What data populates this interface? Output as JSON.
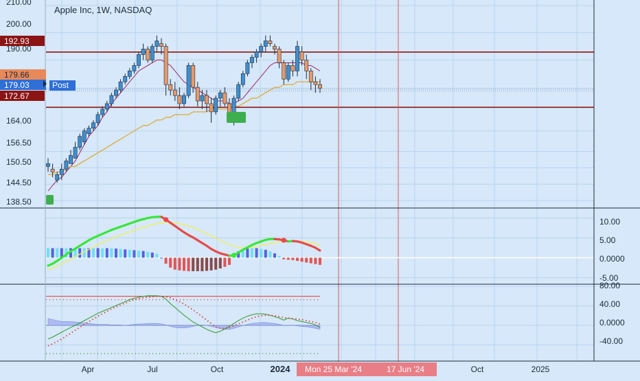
{
  "symbol_title": "Apple Inc, 1W, NASDAQ",
  "post_label": "Post",
  "colors": {
    "background": "#d6e8f9",
    "grid": "#b9d3ee",
    "up_candle": "#3f8fd0",
    "down_candle": "#e69a6c",
    "level_line": "#8b1414",
    "ma_fast": "#a0337a",
    "ma_slow": "#e0a020",
    "vline_red": "#e05a5a",
    "macd_up": "#39e639",
    "macd_down": "#e64a4a",
    "signal": "#f0f060",
    "hist_pos_strong": "#5561e0",
    "hist_pos_light": "#6ee0f5",
    "hist_neg_strong": "#e25555",
    "hist_neg_dark": "#8a4a4a",
    "osc_green": "#2f9a2f",
    "osc_red_dotted": "#e03a3a",
    "osc_area": "#9aa8f0"
  },
  "chart_data": [
    {
      "type": "candlestick",
      "title": "Apple Inc, 1W, NASDAQ",
      "x_labels": [
        "Apr",
        "Jul",
        "Oct",
        "2024",
        "Mon 25 Mar '24",
        "17 Jun '24",
        "Oct",
        "2025"
      ],
      "y_ticks": [
        "210.00",
        "200.00",
        "192.93",
        "190.00",
        "179.66",
        "179.03",
        "172.67",
        "164.00",
        "156.50",
        "150.50",
        "144.50",
        "138.50"
      ],
      "ylim": [
        136,
        212
      ],
      "horizontal_levels": [
        192.93,
        172.67
      ],
      "price_labels": {
        "last": "179.66",
        "post": "179.03"
      },
      "candles": [
        [
          151,
          154,
          149,
          152
        ],
        [
          150,
          152,
          147,
          149
        ],
        [
          146,
          149,
          145,
          148
        ],
        [
          148,
          152,
          146,
          150
        ],
        [
          150,
          154,
          149,
          153
        ],
        [
          152,
          157,
          152,
          155
        ],
        [
          154,
          160,
          154,
          158
        ],
        [
          158,
          163,
          157,
          162
        ],
        [
          160,
          165,
          159,
          164
        ],
        [
          163,
          166,
          162,
          165
        ],
        [
          165,
          168,
          164,
          167
        ],
        [
          167,
          171,
          166,
          170
        ],
        [
          170,
          173,
          169,
          172
        ],
        [
          172,
          175,
          171,
          174
        ],
        [
          174,
          178,
          173,
          177
        ],
        [
          177,
          180,
          176,
          179
        ],
        [
          179,
          183,
          178,
          182
        ],
        [
          182,
          185,
          181,
          184
        ],
        [
          184,
          187,
          183,
          186
        ],
        [
          186,
          189,
          185,
          188
        ],
        [
          188,
          193,
          187,
          192
        ],
        [
          192,
          196,
          190,
          194
        ],
        [
          194,
          195,
          189,
          190
        ],
        [
          190,
          196,
          189,
          195
        ],
        [
          195,
          199,
          193,
          197
        ],
        [
          196,
          198,
          192,
          195
        ],
        [
          195,
          196,
          177,
          181
        ],
        [
          181,
          183,
          177,
          179
        ],
        [
          179,
          182,
          175,
          177
        ],
        [
          177,
          180,
          172,
          174
        ],
        [
          174,
          178,
          173,
          177
        ],
        [
          177,
          189,
          176,
          188
        ],
        [
          188,
          189,
          178,
          180
        ],
        [
          180,
          182,
          173,
          175
        ],
        [
          175,
          179,
          172,
          177
        ],
        [
          177,
          179,
          171,
          174
        ],
        [
          174,
          176,
          167,
          171
        ],
        [
          171,
          177,
          170,
          176
        ],
        [
          176,
          179,
          173,
          178
        ],
        [
          178,
          180,
          173,
          174
        ],
        [
          174,
          176,
          168,
          170
        ],
        [
          170,
          177,
          166,
          176
        ],
        [
          176,
          182,
          175,
          181
        ],
        [
          181,
          186,
          180,
          185
        ],
        [
          185,
          190,
          184,
          189
        ],
        [
          189,
          192,
          187,
          191
        ],
        [
          191,
          194,
          189,
          193
        ],
        [
          193,
          196,
          191,
          195
        ],
        [
          195,
          199,
          193,
          197
        ],
        [
          197,
          199,
          195,
          196
        ],
        [
          195,
          196,
          192,
          194
        ],
        [
          194,
          195,
          187,
          189
        ],
        [
          189,
          190,
          181,
          183
        ],
        [
          183,
          189,
          182,
          188
        ],
        [
          188,
          190,
          184,
          186
        ],
        [
          186,
          197,
          184,
          195
        ],
        [
          193,
          195,
          188,
          190
        ],
        [
          190,
          192,
          183,
          186
        ],
        [
          186,
          187,
          179,
          182
        ],
        [
          182,
          184,
          178,
          181
        ],
        [
          181,
          183,
          178,
          179.66
        ]
      ],
      "ma_fast": [
        142,
        144,
        146,
        147,
        149,
        151,
        153,
        156,
        159,
        162,
        164,
        166,
        169,
        171,
        174,
        176,
        178,
        180,
        182,
        184,
        186,
        187,
        188,
        189,
        190,
        190,
        189,
        188,
        186,
        184,
        182,
        181,
        180,
        179,
        178,
        177,
        176,
        175,
        175,
        175,
        174,
        174,
        175,
        176,
        178,
        180,
        182,
        184,
        186,
        188,
        189,
        189,
        189,
        189,
        189,
        189,
        189,
        188,
        188,
        187,
        186
      ],
      "ma_slow": [
        148,
        148,
        149,
        149,
        150,
        151,
        151,
        152,
        153,
        154,
        155,
        156,
        157,
        158,
        159,
        160,
        161,
        162,
        163,
        164,
        165,
        166,
        166,
        167,
        168,
        168,
        169,
        169,
        170,
        170,
        170,
        170,
        171,
        171,
        171,
        171,
        172,
        172,
        172,
        172,
        172,
        173,
        173,
        174,
        175,
        176,
        176,
        177,
        178,
        179,
        180,
        180,
        181,
        181,
        181,
        182,
        182,
        182,
        182,
        182,
        182
      ]
    },
    {
      "type": "macd",
      "y_ticks": [
        "10.00",
        "5.00",
        "0.0000",
        "-5.00"
      ],
      "ylim": [
        -6.5,
        12
      ],
      "macd": [
        -2,
        -1.5,
        -0.8,
        0,
        0.8,
        1.6,
        2.3,
        3,
        3.7,
        4.4,
        5,
        5.5,
        6,
        6.5,
        7,
        7.4,
        7.8,
        8.2,
        8.6,
        9,
        9.4,
        9.7,
        10,
        10.2,
        10.3,
        10.3,
        9.6,
        8.8,
        8,
        7.2,
        6.4,
        5.7,
        5.1,
        4.4,
        3.7,
        3,
        2.2,
        1.6,
        1.1,
        0.8,
        0.5,
        0.6,
        1.3,
        2,
        2.6,
        3.2,
        3.7,
        4.1,
        4.5,
        4.7,
        4.7,
        4.6,
        4.4,
        4.1,
        4.2,
        4.1,
        3.8,
        3.4,
        3,
        2.5,
        1.8
      ],
      "signal": [
        -3,
        -2.6,
        -2.1,
        -1.5,
        -0.9,
        -0.3,
        0.3,
        0.9,
        1.5,
        2.1,
        2.7,
        3.3,
        3.8,
        4.3,
        4.8,
        5.3,
        5.7,
        6.1,
        6.5,
        6.9,
        7.3,
        7.7,
        8,
        8.3,
        8.6,
        8.8,
        8.9,
        8.9,
        8.8,
        8.6,
        8.3,
        8,
        7.6,
        7.1,
        6.6,
        6.1,
        5.5,
        4.9,
        4.3,
        3.8,
        3.3,
        2.9,
        2.6,
        2.5,
        2.5,
        2.6,
        2.8,
        3.1,
        3.3,
        3.6,
        3.8,
        4,
        4.1,
        4.2,
        4.2,
        4.2,
        4.1,
        4,
        3.8,
        3.5,
        3.1
      ],
      "histogram": [
        2.4,
        2.4,
        2.4,
        2.4,
        2.4,
        2.4,
        2.4,
        2.4,
        2.4,
        2.4,
        2.4,
        2.4,
        2.4,
        2.4,
        2.4,
        2.3,
        2.2,
        2.1,
        2,
        1.9,
        1.8,
        1.7,
        1.5,
        1.3,
        1,
        0,
        -1.5,
        -2.5,
        -3,
        -3.2,
        -3.3,
        -3.4,
        -3.4,
        -3.4,
        -3.4,
        -3.3,
        -3.2,
        -3,
        -2.7,
        -2.3,
        -1.8,
        1.2,
        1.6,
        2,
        2.3,
        2.4,
        2.4,
        2.2,
        2,
        1.6,
        1.1,
        0.4,
        -0.4,
        -0.5,
        -0.6,
        -0.8,
        -1,
        -1.2,
        -1.4,
        -1.6,
        -1.8
      ]
    },
    {
      "type": "oscillator",
      "y_ticks": [
        "80.00",
        "40.00",
        "0.0000",
        "-40.00"
      ],
      "ylim": [
        -72,
        82
      ],
      "reference_levels": [
        60,
        53,
        -58
      ],
      "green_line": [
        -28,
        -24,
        -19,
        -14,
        -9,
        -4,
        0,
        5,
        10,
        15,
        20,
        25,
        29,
        33,
        37,
        41,
        45,
        49,
        53,
        56,
        58,
        60,
        61,
        61,
        61,
        60,
        54,
        45,
        37,
        29,
        21,
        14,
        7,
        2,
        -3,
        -8,
        -12,
        -15,
        -12,
        -7,
        -2,
        4,
        10,
        15,
        19,
        22,
        24,
        24,
        23,
        21,
        18,
        15,
        11,
        15,
        13,
        10,
        8,
        6,
        4,
        1,
        -4
      ],
      "red_dotted": [
        -42,
        -38,
        -33,
        -28,
        -22,
        -16,
        -10,
        -4,
        2,
        8,
        13,
        19,
        24,
        29,
        34,
        38,
        42,
        46,
        50,
        53,
        55,
        57,
        58,
        59,
        60,
        60,
        59,
        57,
        53,
        49,
        44,
        38,
        32,
        25,
        18,
        11,
        4,
        -3,
        -6,
        -6,
        -4,
        -1,
        3,
        7,
        11,
        15,
        18,
        20,
        21,
        21,
        20,
        18,
        16,
        15,
        14,
        13,
        12,
        10,
        8,
        6,
        3
      ],
      "area": [
        14,
        12,
        10,
        8,
        8,
        8,
        7,
        6,
        5,
        4,
        3,
        2,
        2,
        2,
        1,
        1,
        1,
        0,
        1,
        2,
        3,
        3,
        4,
        4,
        4,
        3,
        1,
        -2,
        -4,
        -5,
        -5,
        -4,
        -2,
        0,
        1,
        0,
        -2,
        -4,
        -6,
        -8,
        -8,
        -6,
        -3,
        0,
        2,
        4,
        5,
        6,
        6,
        5,
        4,
        2,
        0,
        0,
        0,
        -1,
        -2,
        -3,
        -4,
        -6,
        -8
      ]
    }
  ]
}
